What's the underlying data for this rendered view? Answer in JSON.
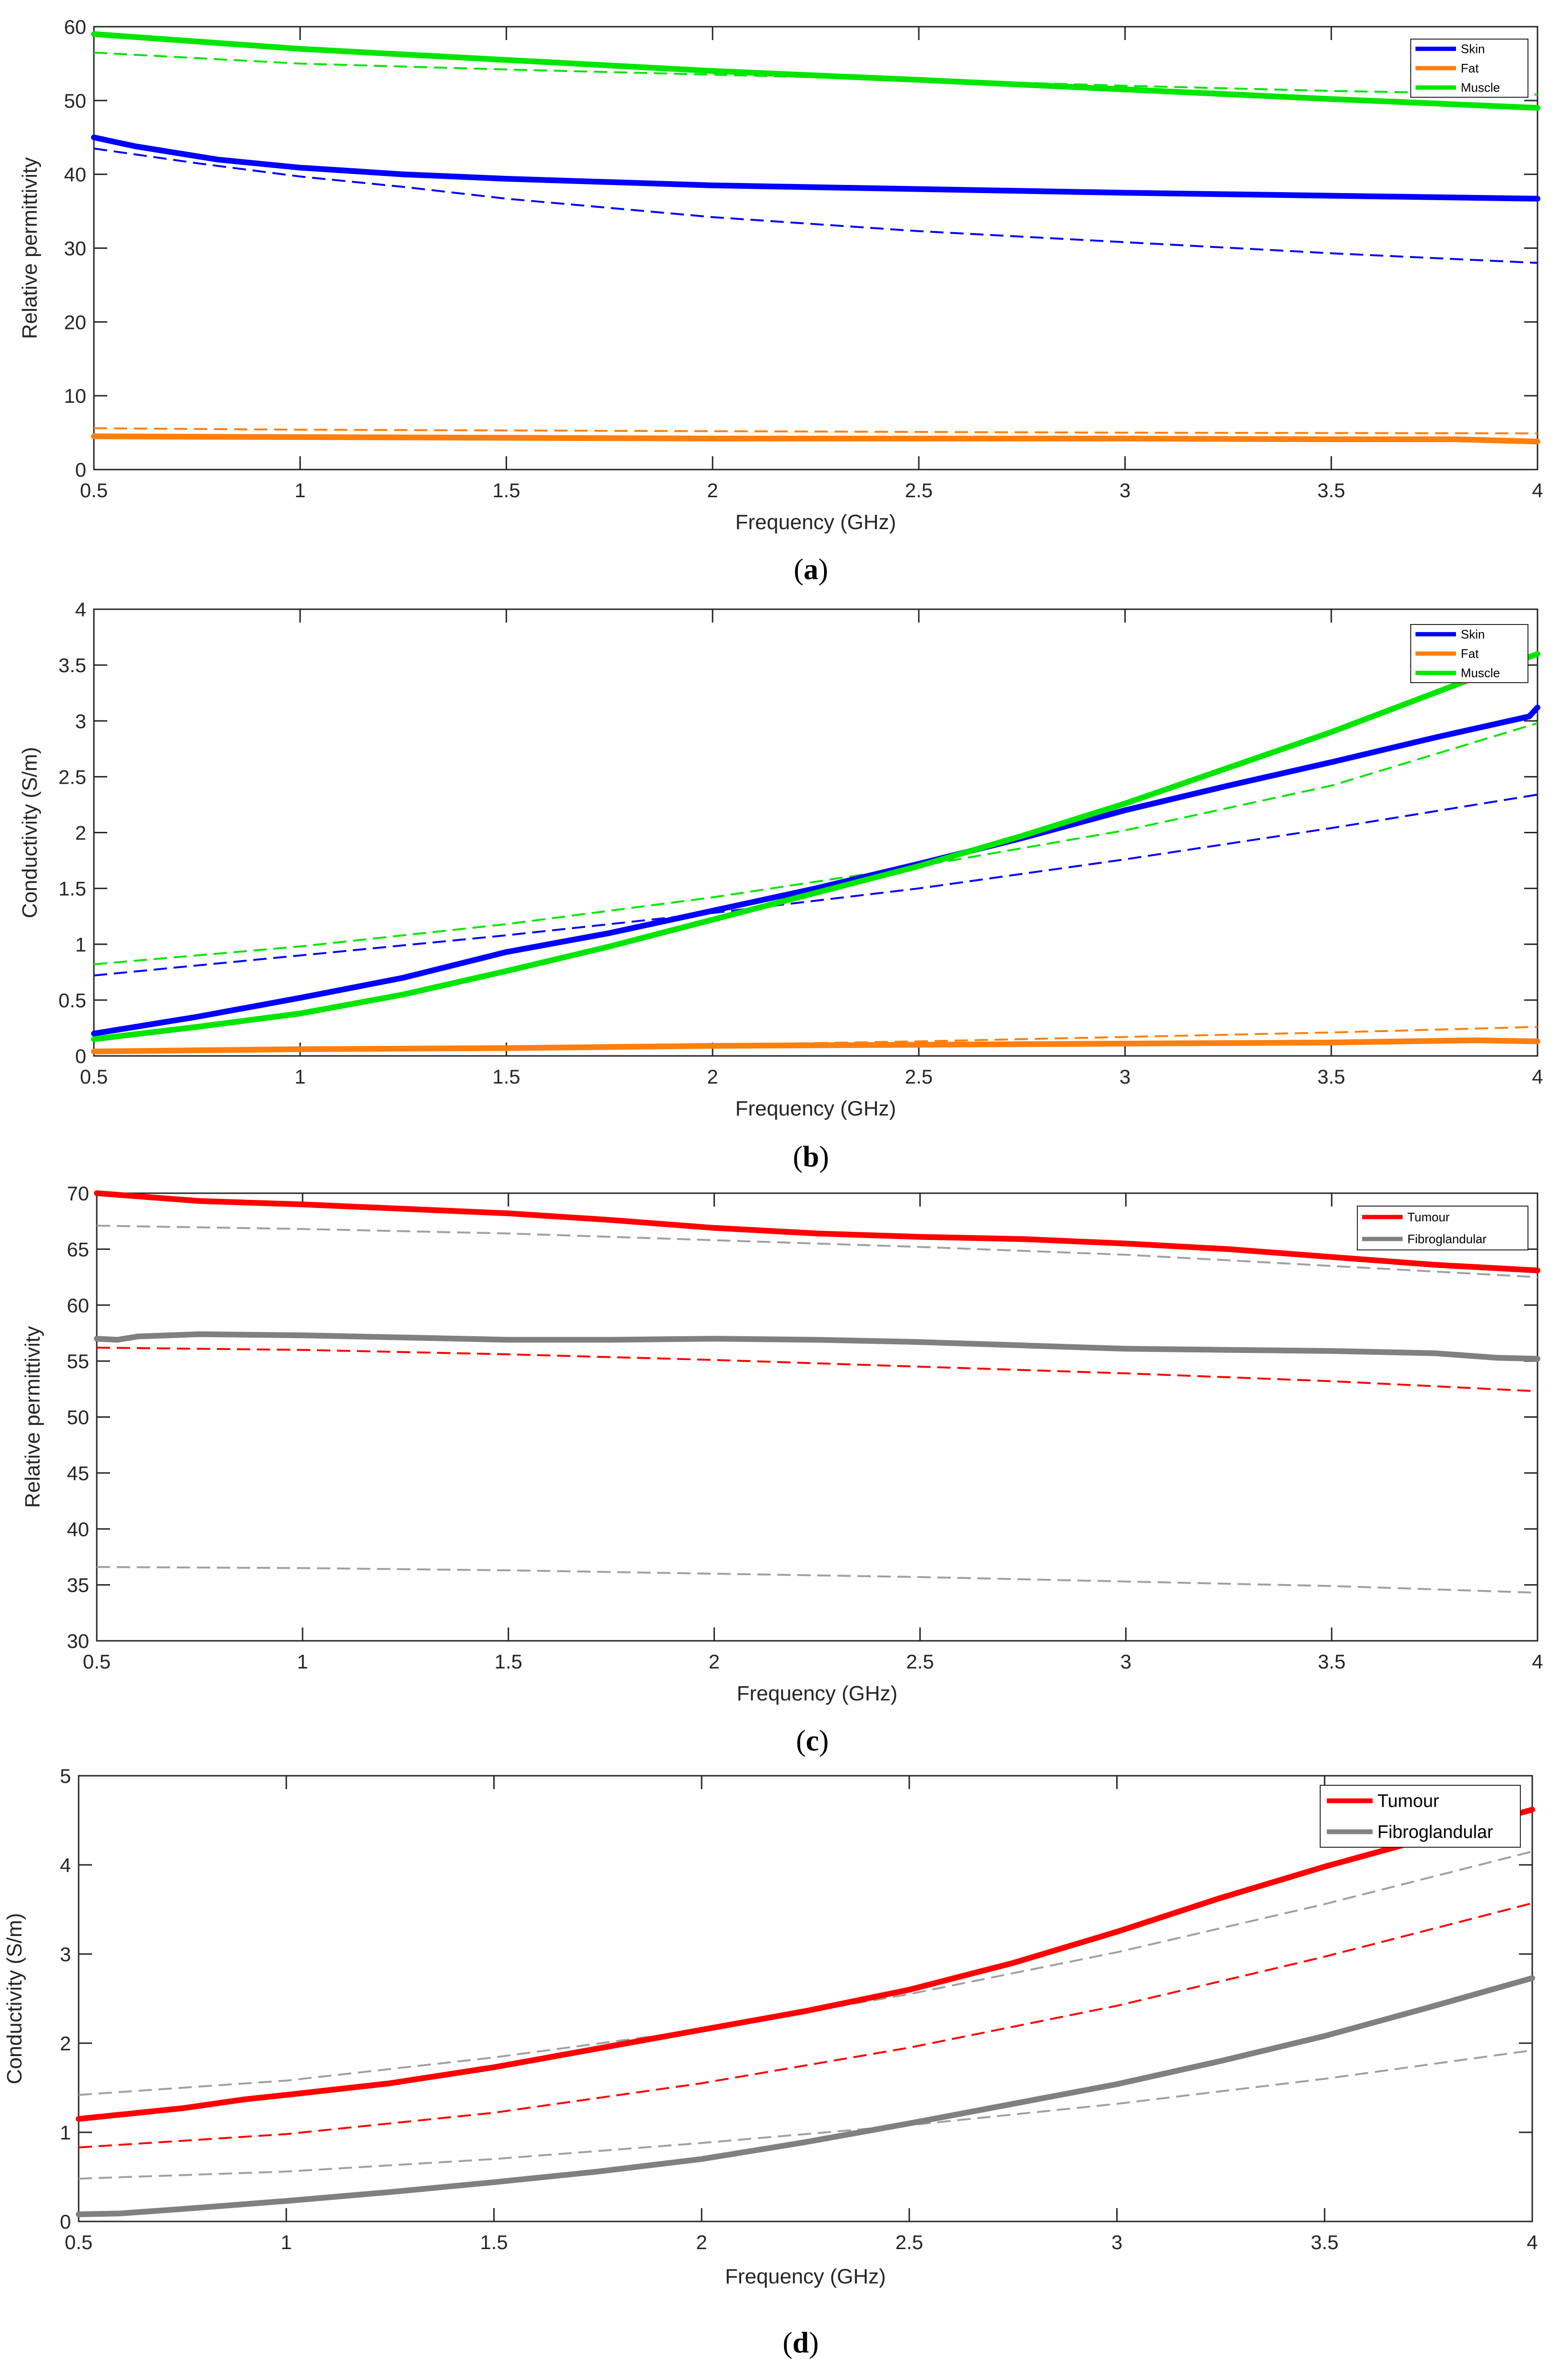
{
  "chart_data": [
    {
      "type": "line",
      "caption_letter": "a",
      "xlabel": "Frequency (GHz)",
      "ylabel": "Relative permittivity",
      "xlim": [
        0.5,
        4
      ],
      "ylim": [
        0,
        60
      ],
      "xticks": [
        0.5,
        1,
        1.5,
        2,
        2.5,
        3,
        3.5,
        4
      ],
      "yticks": [
        0,
        10,
        20,
        30,
        40,
        50,
        60
      ],
      "xtick_labels": [
        "0.5",
        "1",
        "1.5",
        "2",
        "2.5",
        "3",
        "3.5",
        "4"
      ],
      "ytick_labels": [
        "0",
        "10",
        "20",
        "30",
        "40",
        "50",
        "60"
      ],
      "legend_position": "top-right",
      "legend_style": "small",
      "legend": [
        {
          "label": "Skin",
          "color": "#0000ff"
        },
        {
          "label": "Fat",
          "color": "#ff7f0e"
        },
        {
          "label": "Muscle",
          "color": "#00e600"
        }
      ],
      "series": [
        {
          "name": "Skin",
          "color": "#0000ff",
          "style": "solid",
          "x": [
            0.5,
            0.6,
            0.8,
            1.0,
            1.25,
            1.5,
            2.0,
            2.5,
            3.0,
            3.5,
            4.0
          ],
          "y": [
            45.0,
            43.8,
            42.0,
            40.9,
            40.0,
            39.4,
            38.5,
            38.0,
            37.5,
            37.1,
            36.7
          ]
        },
        {
          "name": "Fat",
          "color": "#ff7f0e",
          "style": "solid",
          "x": [
            0.5,
            1.0,
            1.5,
            2.0,
            2.5,
            3.0,
            3.5,
            3.8,
            4.0
          ],
          "y": [
            4.5,
            4.4,
            4.3,
            4.2,
            4.2,
            4.2,
            4.1,
            4.1,
            3.8
          ]
        },
        {
          "name": "Muscle",
          "color": "#00e600",
          "style": "solid",
          "x": [
            0.5,
            1.0,
            1.5,
            2.0,
            2.5,
            3.0,
            3.5,
            4.0
          ],
          "y": [
            59.0,
            57.0,
            55.5,
            54.0,
            52.8,
            51.5,
            50.2,
            49.0
          ]
        },
        {
          "name": "Skin (model)",
          "color": "#0000ff",
          "style": "dashed",
          "x": [
            0.5,
            0.75,
            1.0,
            1.25,
            1.5,
            2.0,
            2.5,
            3.0,
            3.5,
            4.0
          ],
          "y": [
            43.5,
            41.5,
            39.7,
            38.3,
            36.7,
            34.2,
            32.3,
            30.8,
            29.3,
            28.0
          ]
        },
        {
          "name": "Fat (model)",
          "color": "#ff7f0e",
          "style": "dashed",
          "x": [
            0.5,
            1.0,
            2.0,
            3.0,
            4.0
          ],
          "y": [
            5.6,
            5.4,
            5.2,
            5.0,
            4.9
          ]
        },
        {
          "name": "Muscle (model)",
          "color": "#00e600",
          "style": "dashed",
          "x": [
            0.5,
            1.0,
            1.5,
            2.0,
            2.5,
            3.0,
            3.5,
            4.0
          ],
          "y": [
            56.5,
            55.0,
            54.2,
            53.5,
            52.8,
            52.0,
            51.3,
            50.8
          ]
        }
      ]
    },
    {
      "type": "line",
      "caption_letter": "b",
      "xlabel": "Frequency (GHz)",
      "ylabel": "Conductivity (S/m)",
      "xlim": [
        0.5,
        4
      ],
      "ylim": [
        0,
        4
      ],
      "xticks": [
        0.5,
        1,
        1.5,
        2,
        2.5,
        3,
        3.5,
        4
      ],
      "yticks": [
        0,
        0.5,
        1,
        1.5,
        2,
        2.5,
        3,
        3.5,
        4
      ],
      "xtick_labels": [
        "0.5",
        "1",
        "1.5",
        "2",
        "2.5",
        "3",
        "3.5",
        "4"
      ],
      "ytick_labels": [
        "0",
        "0.5",
        "1",
        "1.5",
        "2",
        "2.5",
        "3",
        "3.5",
        "4"
      ],
      "legend_position": "top-right",
      "legend_style": "small",
      "legend": [
        {
          "label": "Skin",
          "color": "#0000ff"
        },
        {
          "label": "Fat",
          "color": "#ff7f0e"
        },
        {
          "label": "Muscle",
          "color": "#00e600"
        }
      ],
      "series": [
        {
          "name": "Skin",
          "color": "#0000ff",
          "style": "solid",
          "x": [
            0.5,
            0.75,
            1.0,
            1.25,
            1.5,
            1.75,
            2.0,
            2.25,
            2.5,
            2.75,
            3.0,
            3.25,
            3.5,
            3.75,
            3.98,
            4.0
          ],
          "y": [
            0.2,
            0.35,
            0.52,
            0.7,
            0.93,
            1.1,
            1.3,
            1.5,
            1.72,
            1.95,
            2.2,
            2.42,
            2.63,
            2.85,
            3.04,
            3.12
          ]
        },
        {
          "name": "Fat",
          "color": "#ff7f0e",
          "style": "solid",
          "x": [
            0.5,
            1.0,
            1.5,
            2.0,
            2.5,
            3.0,
            3.5,
            3.85,
            4.0
          ],
          "y": [
            0.04,
            0.06,
            0.07,
            0.09,
            0.1,
            0.11,
            0.12,
            0.14,
            0.13
          ]
        },
        {
          "name": "Muscle",
          "color": "#00e600",
          "style": "solid",
          "x": [
            0.5,
            0.75,
            1.0,
            1.25,
            1.5,
            1.75,
            2.0,
            2.25,
            2.5,
            2.75,
            3.0,
            3.25,
            3.5,
            3.75,
            4.0
          ],
          "y": [
            0.15,
            0.26,
            0.38,
            0.55,
            0.76,
            0.98,
            1.22,
            1.46,
            1.7,
            1.97,
            2.26,
            2.58,
            2.9,
            3.25,
            3.6
          ]
        },
        {
          "name": "Skin (model)",
          "color": "#0000ff",
          "style": "dashed",
          "x": [
            0.5,
            1.0,
            1.5,
            2.0,
            2.5,
            3.0,
            3.5,
            4.0
          ],
          "y": [
            0.72,
            0.9,
            1.08,
            1.28,
            1.5,
            1.76,
            2.04,
            2.34
          ]
        },
        {
          "name": "Fat (model)",
          "color": "#ff7f0e",
          "style": "dashed",
          "x": [
            0.5,
            1.0,
            1.5,
            2.0,
            2.5,
            3.0,
            3.5,
            4.0
          ],
          "y": [
            0.04,
            0.06,
            0.08,
            0.1,
            0.13,
            0.17,
            0.21,
            0.26
          ]
        },
        {
          "name": "Muscle (model)",
          "color": "#00e600",
          "style": "dashed",
          "x": [
            0.5,
            1.0,
            1.5,
            2.0,
            2.5,
            3.0,
            3.5,
            4.0
          ],
          "y": [
            0.82,
            0.98,
            1.18,
            1.42,
            1.7,
            2.02,
            2.42,
            2.98
          ]
        }
      ]
    },
    {
      "type": "line",
      "caption_letter": "c",
      "xlabel": "Frequency (GHz)",
      "ylabel": "Relative permittivity",
      "xlim": [
        0.5,
        4
      ],
      "ylim": [
        30,
        70
      ],
      "xticks": [
        0.5,
        1,
        1.5,
        2,
        2.5,
        3,
        3.5,
        4
      ],
      "yticks": [
        30,
        35,
        40,
        45,
        50,
        55,
        60,
        65,
        70
      ],
      "xtick_labels": [
        "0.5",
        "1",
        "1.5",
        "2",
        "2.5",
        "3",
        "3.5",
        "4"
      ],
      "ytick_labels": [
        "30",
        "35",
        "40",
        "45",
        "50",
        "55",
        "60",
        "65",
        "70"
      ],
      "legend_position": "top-right",
      "legend_style": "small",
      "legend": [
        {
          "label": "Tumour",
          "color": "#ff0000"
        },
        {
          "label": "Fibroglandular",
          "color": "#808080"
        }
      ],
      "series": [
        {
          "name": "Tumour",
          "color": "#ff0000",
          "style": "solid",
          "x": [
            0.5,
            0.75,
            1.0,
            1.25,
            1.5,
            1.75,
            2.0,
            2.25,
            2.5,
            2.75,
            3.0,
            3.25,
            3.5,
            3.75,
            4.0
          ],
          "y": [
            70.0,
            69.3,
            69.0,
            68.6,
            68.2,
            67.6,
            66.9,
            66.4,
            66.1,
            65.9,
            65.5,
            65.0,
            64.3,
            63.6,
            63.1
          ]
        },
        {
          "name": "Fibroglandular",
          "color": "#808080",
          "style": "solid",
          "x": [
            0.5,
            0.55,
            0.6,
            0.75,
            1.0,
            1.25,
            1.5,
            1.75,
            2.0,
            2.25,
            2.5,
            2.75,
            3.0,
            3.25,
            3.5,
            3.75,
            3.9,
            4.0
          ],
          "y": [
            57.0,
            56.9,
            57.2,
            57.4,
            57.3,
            57.1,
            56.9,
            56.9,
            57.0,
            56.9,
            56.7,
            56.4,
            56.1,
            56.0,
            55.9,
            55.7,
            55.3,
            55.2
          ]
        },
        {
          "name": "Tumour (model)",
          "color": "#ff0000",
          "style": "dashed",
          "x": [
            0.5,
            1.0,
            1.5,
            2.0,
            2.5,
            3.0,
            3.5,
            4.0
          ],
          "y": [
            56.2,
            56.0,
            55.6,
            55.1,
            54.5,
            53.9,
            53.2,
            52.3
          ]
        },
        {
          "name": "Fibroglandular (model, upper)",
          "color": "#a0a0a0",
          "style": "dashed",
          "x": [
            0.5,
            1.0,
            1.5,
            2.0,
            2.5,
            3.0,
            3.5,
            4.0
          ],
          "y": [
            67.1,
            66.8,
            66.4,
            65.8,
            65.2,
            64.5,
            63.5,
            62.5
          ]
        },
        {
          "name": "Fibroglandular (model, lower)",
          "color": "#a0a0a0",
          "style": "dashed",
          "x": [
            0.5,
            1.0,
            1.5,
            2.0,
            2.5,
            3.0,
            3.5,
            4.0
          ],
          "y": [
            36.6,
            36.5,
            36.3,
            36.0,
            35.7,
            35.3,
            34.9,
            34.3
          ]
        }
      ]
    },
    {
      "type": "line",
      "caption_letter": "d",
      "xlabel": "Frequency (GHz)",
      "ylabel": "Conductivity (S/m)",
      "xlim": [
        0.5,
        4
      ],
      "ylim": [
        0,
        5
      ],
      "xticks": [
        0.5,
        1,
        1.5,
        2,
        2.5,
        3,
        3.5,
        4
      ],
      "yticks": [
        0,
        1,
        2,
        3,
        4,
        5
      ],
      "xtick_labels": [
        "0.5",
        "1",
        "1.5",
        "2",
        "2.5",
        "3",
        "3.5",
        "4"
      ],
      "ytick_labels": [
        "0",
        "1",
        "2",
        "3",
        "4",
        "5"
      ],
      "legend_position": "top-right",
      "legend_style": "large",
      "legend": [
        {
          "label": "Tumour",
          "color": "#ff0000"
        },
        {
          "label": "Fibroglandular",
          "color": "#808080"
        }
      ],
      "series": [
        {
          "name": "Tumour",
          "color": "#ff0000",
          "style": "solid",
          "x": [
            0.5,
            0.75,
            0.9,
            1.0,
            1.25,
            1.5,
            1.75,
            2.0,
            2.25,
            2.5,
            2.75,
            3.0,
            3.25,
            3.5,
            3.75,
            4.0
          ],
          "y": [
            1.15,
            1.27,
            1.37,
            1.42,
            1.55,
            1.73,
            1.94,
            2.15,
            2.36,
            2.6,
            2.9,
            3.25,
            3.63,
            3.98,
            4.3,
            4.62
          ]
        },
        {
          "name": "Fibroglandular",
          "color": "#808080",
          "style": "solid",
          "x": [
            0.5,
            0.6,
            0.75,
            1.0,
            1.25,
            1.5,
            1.75,
            2.0,
            2.25,
            2.5,
            2.75,
            3.0,
            3.25,
            3.5,
            3.75,
            4.0
          ],
          "y": [
            0.08,
            0.09,
            0.14,
            0.23,
            0.33,
            0.44,
            0.56,
            0.7,
            0.89,
            1.1,
            1.32,
            1.54,
            1.8,
            2.08,
            2.4,
            2.73
          ]
        },
        {
          "name": "Tumour (model)",
          "color": "#ff0000",
          "style": "dashed",
          "x": [
            0.5,
            1.0,
            1.5,
            2.0,
            2.5,
            3.0,
            3.5,
            4.0
          ],
          "y": [
            0.83,
            0.98,
            1.22,
            1.55,
            1.95,
            2.42,
            2.97,
            3.57
          ]
        },
        {
          "name": "Fibroglandular (model, upper)",
          "color": "#a0a0a0",
          "style": "dashed",
          "x": [
            0.5,
            1.0,
            1.5,
            2.0,
            2.5,
            3.0,
            3.5,
            4.0
          ],
          "y": [
            1.42,
            1.58,
            1.84,
            2.15,
            2.55,
            3.02,
            3.56,
            4.15
          ]
        },
        {
          "name": "Fibroglandular (model, lower)",
          "color": "#a0a0a0",
          "style": "dashed",
          "x": [
            0.5,
            1.0,
            1.5,
            2.0,
            2.5,
            3.0,
            3.5,
            4.0
          ],
          "y": [
            0.48,
            0.56,
            0.7,
            0.88,
            1.08,
            1.32,
            1.6,
            1.92
          ]
        }
      ]
    }
  ]
}
